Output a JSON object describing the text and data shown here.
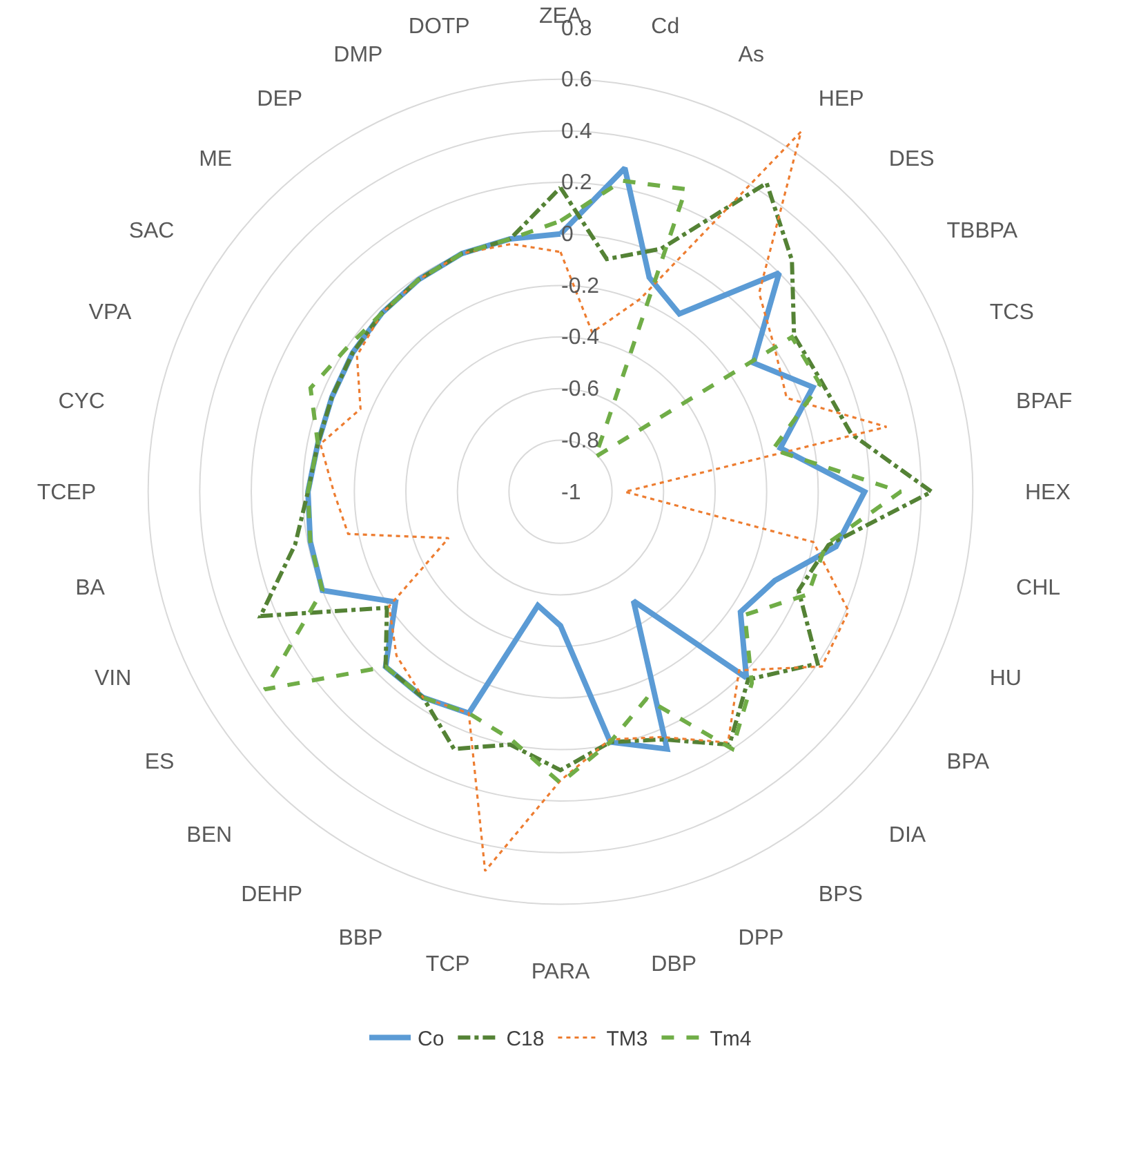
{
  "chart_data": {
    "type": "radar",
    "categories": [
      "ZEA",
      "Cd",
      "As",
      "HEP",
      "DES",
      "TBBPA",
      "TCS",
      "BPAF",
      "HEX",
      "CHL",
      "HU",
      "BPA",
      "DIA",
      "BPS",
      "DPP",
      "DBP",
      "PARA",
      "TCP",
      "BBP",
      "DEHP",
      "BEN",
      "ES",
      "VIN",
      "BA",
      "TCEP",
      "CYC",
      "VPA",
      "SAC",
      "ME",
      "DEP",
      "DMP",
      "DOTP"
    ],
    "series": [
      {
        "name": "Co",
        "color": "#5b9bd5",
        "line_style": "solid",
        "values": [
          0,
          0.28,
          -0.1,
          -0.17,
          0.2,
          -0.1,
          0.06,
          -0.13,
          0.18,
          0.09,
          -0.1,
          -0.16,
          0.02,
          -0.49,
          0.08,
          -0.01,
          -0.48,
          -0.55,
          -0.07,
          -0.04,
          -0.04,
          -0.23,
          0.0,
          -0.01,
          -0.02,
          -0.04,
          -0.04,
          -0.03,
          -0.02,
          -0.01,
          0,
          0
        ]
      },
      {
        "name": "C18",
        "color": "#548235",
        "line_style": "dashdot",
        "values": [
          0.18,
          -0.08,
          0.02,
          0.44,
          0.27,
          0.09,
          0.1,
          0.15,
          0.44,
          0.06,
          0.0,
          0.2,
          0.03,
          0.18,
          0.04,
          -0.01,
          0.08,
          0.0,
          0.08,
          -0.04,
          -0.04,
          -0.19,
          0.26,
          0.05,
          -0.02,
          -0.04,
          -0.04,
          -0.03,
          -0.02,
          -0.01,
          0,
          0
        ]
      },
      {
        "name": "TM3",
        "color": "#ed7d31",
        "line_style": "dotted",
        "values": [
          -0.07,
          -0.37,
          -0.19,
          0.68,
          0.09,
          0.0,
          -0.05,
          0.29,
          -0.75,
          0.0,
          0.21,
          0.22,
          -0.02,
          0.17,
          0.03,
          -0.02,
          0.12,
          0.5,
          -0.07,
          -0.04,
          -0.1,
          -0.2,
          -0.53,
          -0.16,
          -0.12,
          -0.05,
          -0.16,
          -0.05,
          -0.02,
          -0.01,
          0,
          -0.02
        ]
      },
      {
        "name": "Tm4",
        "color": "#70ad47",
        "line_style": "dashed",
        "values": [
          0.05,
          0.23,
          0.27,
          -0.67,
          -0.81,
          0.08,
          0.09,
          -0.16,
          0.32,
          0.05,
          0.04,
          -0.14,
          0.05,
          0.2,
          -0.13,
          -0.01,
          0.13,
          -0.02,
          -0.07,
          -0.04,
          -0.04,
          0.38,
          0.0,
          -0.01,
          -0.02,
          -0.04,
          0.05,
          0.0,
          -0.02,
          -0.01,
          0,
          0
        ]
      }
    ],
    "ylim": [
      -1,
      0.8
    ],
    "yticks": [
      -1,
      -0.8,
      -0.6,
      -0.4,
      -0.2,
      0,
      0.2,
      0.4,
      0.6,
      0.8
    ],
    "grid": true,
    "legend": "bottom"
  }
}
